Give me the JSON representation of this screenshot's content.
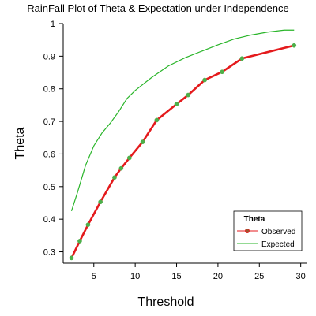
{
  "chart_data": {
    "type": "line",
    "title": "RainFall Plot of Theta & Expectation under Independence",
    "xlabel": "Threshold",
    "ylabel": "Theta",
    "xlim": [
      1.3,
      30.7
    ],
    "ylim": [
      0.265,
      1.0
    ],
    "xticks": [
      5,
      10,
      15,
      20,
      25,
      30
    ],
    "yticks": [
      0.3,
      0.4,
      0.5,
      0.6,
      0.7,
      0.8,
      0.9,
      1.0
    ],
    "xtick_labels": [
      "5",
      "10",
      "15",
      "20",
      "25",
      "30"
    ],
    "ytick_labels": [
      "0.3",
      "0.4",
      "0.5",
      "0.6",
      "0.7",
      "0.8",
      "0.9",
      "1"
    ],
    "legend": {
      "title": "Theta",
      "position": "bottom-right"
    },
    "grid": false,
    "series": [
      {
        "name": "Observed",
        "color": "#e41a1c",
        "marker_color": "#4daf4a",
        "x": [
          2.3,
          3.3,
          4.3,
          5.8,
          7.5,
          8.3,
          9.3,
          10.9,
          12.6,
          15.0,
          16.4,
          18.4,
          20.5,
          22.9,
          29.2
        ],
        "y": [
          0.281,
          0.333,
          0.383,
          0.453,
          0.528,
          0.556,
          0.588,
          0.637,
          0.704,
          0.753,
          0.781,
          0.827,
          0.852,
          0.893,
          0.933
        ]
      },
      {
        "name": "Expected",
        "color": "#2ab52a",
        "x": [
          2.3,
          3.0,
          4.0,
          5.0,
          6.0,
          7.0,
          8.0,
          9.0,
          10.0,
          12.0,
          14.0,
          16.0,
          18.0,
          20.0,
          22.0,
          24.0,
          26.0,
          28.0,
          29.2
        ],
        "y": [
          0.425,
          0.48,
          0.565,
          0.625,
          0.665,
          0.695,
          0.73,
          0.77,
          0.795,
          0.835,
          0.87,
          0.895,
          0.915,
          0.935,
          0.953,
          0.965,
          0.974,
          0.98,
          0.98
        ]
      }
    ]
  }
}
